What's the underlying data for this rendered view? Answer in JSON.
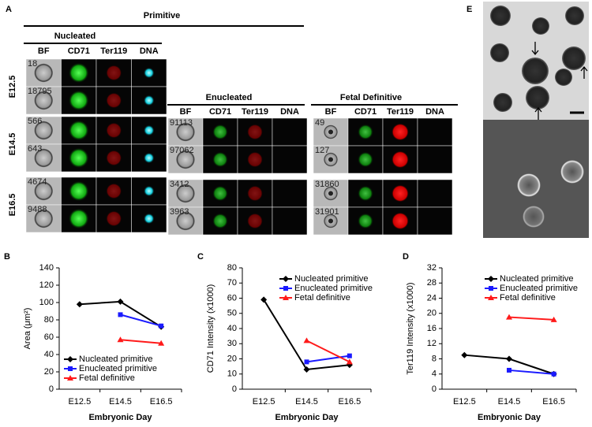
{
  "panel_a": {
    "label": "A",
    "title": "Primitive",
    "stages": [
      "E12.5",
      "E14.5",
      "E16.5"
    ],
    "groups": [
      {
        "title": "Nucleated",
        "columns": [
          "BF",
          "CD71",
          "Ter119",
          "DNA"
        ],
        "ids": [
          [
            "18",
            "18795"
          ],
          [
            "566",
            "643"
          ],
          [
            "4674",
            "9488"
          ]
        ]
      },
      {
        "title": "Enucleated",
        "columns": [
          "BF",
          "CD71",
          "Ter119",
          "DNA"
        ],
        "ids": [
          [
            "91113",
            "97062"
          ],
          [
            "3412",
            "3963"
          ]
        ]
      },
      {
        "title": "Fetal Definitive",
        "columns": [
          "BF",
          "CD71",
          "Ter119",
          "DNA"
        ],
        "ids": [
          [
            "49",
            "127"
          ],
          [
            "31860",
            "31901"
          ]
        ]
      }
    ]
  },
  "panel_e": {
    "label": "E"
  },
  "chart_data": [
    {
      "type": "line",
      "label": "B",
      "ylabel": "Area (μm²)",
      "xlabel": "Embryonic Day",
      "categories": [
        "E12.5",
        "E14.5",
        "E16.5"
      ],
      "ylim": [
        0,
        140
      ],
      "yticks": [
        0,
        20,
        40,
        60,
        80,
        100,
        120,
        140
      ],
      "legend": "lower left",
      "series": [
        {
          "name": "Nucleated primitive",
          "color": "#000000",
          "marker": "diamond",
          "values": [
            98,
            101,
            72
          ]
        },
        {
          "name": "Enucleated primitive",
          "color": "#1a1aff",
          "marker": "square",
          "values": [
            null,
            86,
            73
          ]
        },
        {
          "name": "Fetal definitive",
          "color": "#ff1a1a",
          "marker": "triangle",
          "values": [
            null,
            57,
            53
          ]
        }
      ]
    },
    {
      "type": "line",
      "label": "C",
      "ylabel": "CD71 Intensity (x1000)",
      "xlabel": "Embryonic Day",
      "categories": [
        "E12.5",
        "E14.5",
        "E16.5"
      ],
      "ylim": [
        0,
        80
      ],
      "yticks": [
        0,
        10,
        20,
        30,
        40,
        50,
        60,
        70,
        80
      ],
      "legend": "upper right",
      "series": [
        {
          "name": "Nucleated primitive",
          "color": "#000000",
          "marker": "diamond",
          "values": [
            59,
            13,
            16
          ]
        },
        {
          "name": "Enucleated primitive",
          "color": "#1a1aff",
          "marker": "square",
          "values": [
            null,
            18,
            22
          ]
        },
        {
          "name": "Fetal definitive",
          "color": "#ff1a1a",
          "marker": "triangle",
          "values": [
            null,
            32,
            18
          ]
        }
      ]
    },
    {
      "type": "line",
      "label": "D",
      "ylabel": "Ter119 Intensity (x1000)",
      "xlabel": "Embryonic Day",
      "categories": [
        "E12.5",
        "E14.5",
        "E16.5"
      ],
      "ylim": [
        0,
        32
      ],
      "yticks": [
        0,
        4,
        8,
        12,
        16,
        20,
        24,
        28,
        32
      ],
      "legend": "upper right",
      "series": [
        {
          "name": "Nucleated primitive",
          "color": "#000000",
          "marker": "diamond",
          "values": [
            9,
            8,
            4
          ]
        },
        {
          "name": "Enucleated primitive",
          "color": "#1a1aff",
          "marker": "square",
          "values": [
            null,
            5,
            4
          ]
        },
        {
          "name": "Fetal definitive",
          "color": "#ff1a1a",
          "marker": "triangle",
          "values": [
            null,
            19,
            18.3
          ]
        }
      ]
    }
  ]
}
